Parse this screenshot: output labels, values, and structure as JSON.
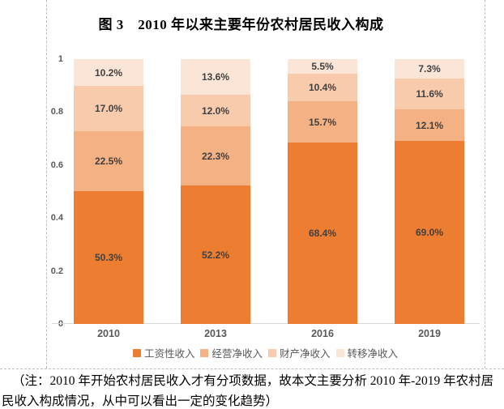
{
  "page": {
    "note": "（注：2010 年开始农村居民收入才有分项数据，故本文主要分析 2010 年-2019 年农村居民收入构成情况，从中可以看出一定的变化趋势）"
  },
  "chart_data": {
    "type": "bar",
    "stacked": true,
    "title": "图 3　2010 年以来主要年份农村居民收入构成",
    "xlabel": "",
    "ylabel": "",
    "categories": [
      "2010",
      "2013",
      "2016",
      "2019"
    ],
    "series": [
      {
        "name": "工资性收入",
        "color": "#ED7D31",
        "values": [
          50.3,
          52.2,
          68.4,
          69.0
        ]
      },
      {
        "name": "经营净收入",
        "color": "#F4B183",
        "values": [
          22.5,
          22.3,
          15.7,
          12.1
        ]
      },
      {
        "name": "财产净收入",
        "color": "#F8CBAD",
        "values": [
          17.0,
          12.0,
          10.4,
          11.6
        ]
      },
      {
        "name": "转移净收入",
        "color": "#FBE5D6",
        "values": [
          10.2,
          13.6,
          5.5,
          7.3
        ]
      }
    ],
    "value_label_suffix": "%",
    "value_label_decimals": 1,
    "y_axis": {
      "min": 0,
      "max": 1,
      "ticks": [
        {
          "label": "1",
          "value": 1.0
        },
        {
          "label": "0.8",
          "value": 0.8
        },
        {
          "label": "0.6",
          "value": 0.6
        },
        {
          "label": "0.4",
          "value": 0.4
        },
        {
          "label": "0.2",
          "value": 0.2
        },
        {
          "label": "0",
          "value": 0.0
        }
      ]
    },
    "grid": false,
    "legend_position": "bottom"
  }
}
